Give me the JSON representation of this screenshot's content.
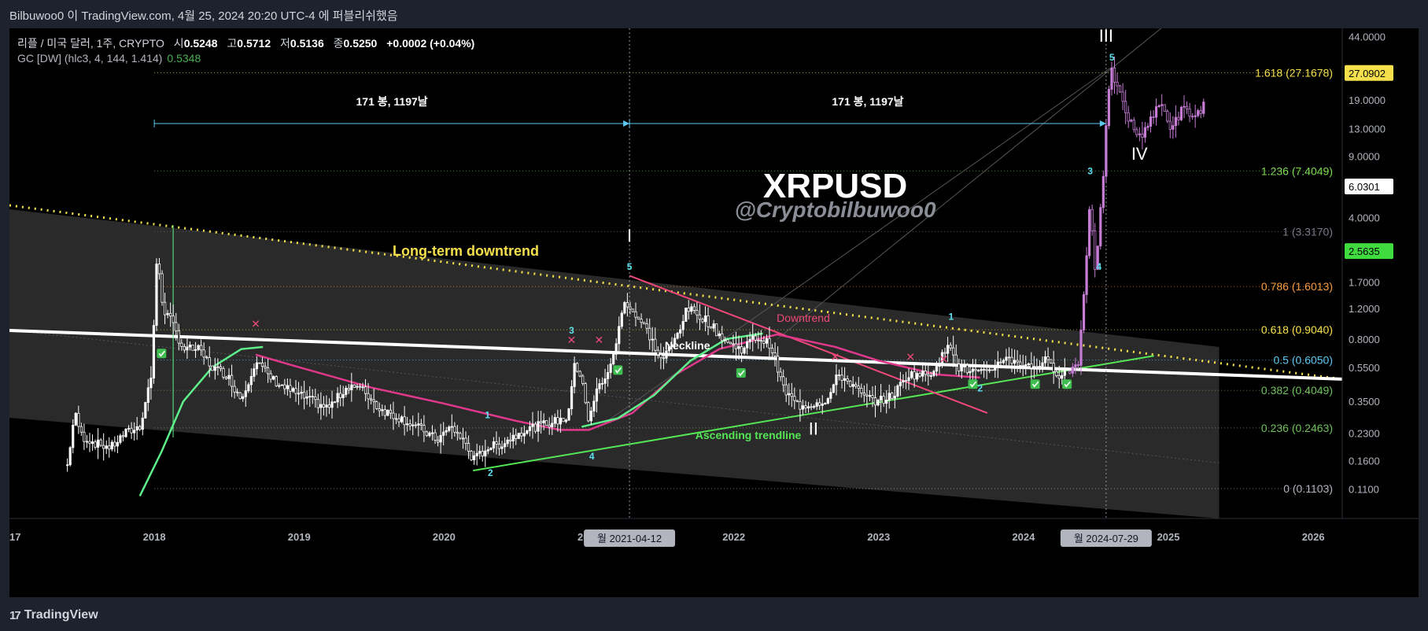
{
  "header": {
    "publish_line": "Bilbuwoo0 이 TradingView.com, 4월 25, 2024 20:20 UTC-4 에 퍼블리쉬했음"
  },
  "legend": {
    "symbol_line": "리플 / 미국 달러, 1주, CRYPTO",
    "open_label": "시",
    "open": "0.5248",
    "high_label": "고",
    "high": "0.5712",
    "low_label": "저",
    "low": "0.5136",
    "close_label": "종",
    "close": "0.5250",
    "change": "+0.0002 (+0.04%)",
    "indicator": "GC [DW] (hlc3, 4, 144, 1.414)",
    "indicator_value": "0.5348"
  },
  "footer": {
    "brand": "TradingView",
    "brand_icon": "tradingview-logo-icon"
  },
  "colors": {
    "background": "#000000",
    "candles": "#ffffff",
    "projection": "#c77dd6",
    "trendline_ascending": "#55e655",
    "trendline_downtrend": "#f0487a",
    "long_term_downtrend": "#f5e04c",
    "neckline": "#ffffff",
    "gc_curve": "#5ef08a",
    "fib_1618": "#f5e04c",
    "fib_1236": "#7ddc4f",
    "fib_1": "#787b86",
    "fib_0786": "#f59c42",
    "fib_0618": "#f5e04c",
    "fib_05": "#5ec8f0",
    "fib_0382": "#6fbf5a",
    "fib_0236": "#6fbf5a",
    "fib_0": "#b2b5be"
  },
  "chart_data": {
    "type": "candlestick",
    "title": "XRPUSD",
    "watermark": "@Cryptobilbuwoo0",
    "scale": "log",
    "ylim": [
      0.085,
      46
    ],
    "xlim": [
      2017.0,
      2026.2
    ],
    "x_ticks": [
      "2017",
      "2018",
      "2019",
      "2020",
      "2021",
      "2022",
      "2023",
      "2024",
      "2025",
      "2026"
    ],
    "y_ticks": [
      "44.0000",
      "27.0000",
      "19.0000",
      "13.0000",
      "9.0000",
      "6.0000",
      "4.0000",
      "2.5000",
      "1.7000",
      "1.2000",
      "0.8000",
      "0.5500",
      "0.3500",
      "0.2300",
      "0.1600",
      "0.1100"
    ],
    "crosshair_dates": [
      "월 2021-04-12",
      "월 2024-07-29"
    ],
    "price_badges": [
      {
        "value": "27.0902",
        "style": "yellow"
      },
      {
        "value": "6.0301",
        "style": "white"
      },
      {
        "value": "2.5635",
        "style": "green"
      }
    ],
    "fib_levels": [
      {
        "ratio": "1.618",
        "price": 27.1678,
        "label": "1.618 (27.1678)"
      },
      {
        "ratio": "1.236",
        "price": 7.4049,
        "label": "1.236 (7.4049)"
      },
      {
        "ratio": "1",
        "price": 3.317,
        "label": "1 (3.3170)"
      },
      {
        "ratio": "0.786",
        "price": 1.6013,
        "label": "0.786 (1.6013)"
      },
      {
        "ratio": "0.618",
        "price": 0.904,
        "label": "0.618 (0.9040)"
      },
      {
        "ratio": "0.5",
        "price": 0.605,
        "label": "0.5 (0.6050)"
      },
      {
        "ratio": "0.382",
        "price": 0.4049,
        "label": "0.382 (0.4049)"
      },
      {
        "ratio": "0.236",
        "price": 0.2463,
        "label": "0.236 (0.2463)"
      },
      {
        "ratio": "0",
        "price": 0.1103,
        "label": "0 (0.1103)"
      }
    ],
    "ranges": [
      {
        "label": "171 봉, 1197날",
        "from": 2018.0,
        "to": 2021.28
      },
      {
        "label": "171 봉, 1197날",
        "from": 2021.28,
        "to": 2024.57
      }
    ],
    "annotations": {
      "long_term_downtrend": "Long-term downtrend",
      "downtrend": "Downtrend",
      "neckline": "Neckline",
      "ascending_trendline": "Ascending trendline",
      "waves": [
        {
          "label": "I",
          "x": 2021.28,
          "y": 2.9
        },
        {
          "label": "II",
          "x": 2022.55,
          "y": 0.225
        },
        {
          "label": "III",
          "x": 2024.57,
          "y": 41
        },
        {
          "label": "IV",
          "x": 2024.8,
          "y": 8.6
        }
      ],
      "sub_waves": [
        {
          "label": "1",
          "x": 2020.3,
          "y": 0.28
        },
        {
          "label": "2",
          "x": 2020.32,
          "y": 0.13
        },
        {
          "label": "3",
          "x": 2020.88,
          "y": 0.86
        },
        {
          "label": "4",
          "x": 2021.02,
          "y": 0.162
        },
        {
          "label": "5",
          "x": 2021.28,
          "y": 2.0
        },
        {
          "label": "1",
          "x": 2023.5,
          "y": 1.03
        },
        {
          "label": "2",
          "x": 2023.7,
          "y": 0.4
        },
        {
          "label": "3",
          "x": 2024.46,
          "y": 7.1
        },
        {
          "label": "4",
          "x": 2024.52,
          "y": 2.0
        },
        {
          "label": "5",
          "x": 2024.61,
          "y": 32
        }
      ],
      "x_marks": [
        {
          "x": 2018.7,
          "y": 0.93
        },
        {
          "x": 2020.88,
          "y": 0.75
        },
        {
          "x": 2021.07,
          "y": 0.75
        },
        {
          "x": 2022.7,
          "y": 0.6
        },
        {
          "x": 2023.22,
          "y": 0.6
        },
        {
          "x": 2023.45,
          "y": 0.58
        }
      ],
      "check_marks": [
        {
          "x": 2018.05,
          "y": 0.66
        },
        {
          "x": 2021.2,
          "y": 0.53
        },
        {
          "x": 2022.05,
          "y": 0.51
        },
        {
          "x": 2023.65,
          "y": 0.44
        },
        {
          "x": 2024.08,
          "y": 0.44
        },
        {
          "x": 2024.3,
          "y": 0.44
        }
      ]
    },
    "price_path": [
      [
        2017.4,
        0.15
      ],
      [
        2017.45,
        0.3
      ],
      [
        2017.5,
        0.22
      ],
      [
        2017.6,
        0.2
      ],
      [
        2017.7,
        0.19
      ],
      [
        2017.8,
        0.23
      ],
      [
        2017.9,
        0.25
      ],
      [
        2017.98,
        0.5
      ],
      [
        2018.02,
        2.5
      ],
      [
        2018.06,
        1.2
      ],
      [
        2018.12,
        1.0
      ],
      [
        2018.2,
        0.7
      ],
      [
        2018.3,
        0.7
      ],
      [
        2018.4,
        0.55
      ],
      [
        2018.5,
        0.5
      ],
      [
        2018.6,
        0.36
      ],
      [
        2018.7,
        0.6
      ],
      [
        2018.8,
        0.48
      ],
      [
        2018.9,
        0.42
      ],
      [
        2019.0,
        0.38
      ],
      [
        2019.2,
        0.32
      ],
      [
        2019.35,
        0.44
      ],
      [
        2019.45,
        0.4
      ],
      [
        2019.55,
        0.32
      ],
      [
        2019.7,
        0.28
      ],
      [
        2019.85,
        0.24
      ],
      [
        2019.95,
        0.21
      ],
      [
        2020.05,
        0.25
      ],
      [
        2020.15,
        0.2
      ],
      [
        2020.2,
        0.16
      ],
      [
        2020.3,
        0.19
      ],
      [
        2020.4,
        0.2
      ],
      [
        2020.55,
        0.24
      ],
      [
        2020.7,
        0.26
      ],
      [
        2020.85,
        0.28
      ],
      [
        2020.9,
        0.55
      ],
      [
        2020.95,
        0.5
      ],
      [
        2021.0,
        0.26
      ],
      [
        2021.05,
        0.4
      ],
      [
        2021.15,
        0.55
      ],
      [
        2021.25,
        1.35
      ],
      [
        2021.32,
        1.1
      ],
      [
        2021.4,
        0.9
      ],
      [
        2021.5,
        0.6
      ],
      [
        2021.58,
        0.75
      ],
      [
        2021.68,
        1.2
      ],
      [
        2021.8,
        1.05
      ],
      [
        2021.9,
        0.85
      ],
      [
        2021.97,
        0.75
      ],
      [
        2022.05,
        0.7
      ],
      [
        2022.15,
        0.82
      ],
      [
        2022.25,
        0.75
      ],
      [
        2022.35,
        0.4
      ],
      [
        2022.45,
        0.33
      ],
      [
        2022.55,
        0.34
      ],
      [
        2022.65,
        0.36
      ],
      [
        2022.72,
        0.5
      ],
      [
        2022.8,
        0.45
      ],
      [
        2022.9,
        0.37
      ],
      [
        2023.0,
        0.35
      ],
      [
        2023.1,
        0.38
      ],
      [
        2023.2,
        0.5
      ],
      [
        2023.35,
        0.5
      ],
      [
        2023.5,
        0.75
      ],
      [
        2023.55,
        0.55
      ],
      [
        2023.65,
        0.52
      ],
      [
        2023.75,
        0.5
      ],
      [
        2023.85,
        0.62
      ],
      [
        2023.95,
        0.6
      ],
      [
        2024.05,
        0.55
      ],
      [
        2024.15,
        0.6
      ],
      [
        2024.25,
        0.5
      ],
      [
        2024.3,
        0.52
      ]
    ],
    "projection_path": [
      [
        2024.32,
        0.52
      ],
      [
        2024.38,
        0.6
      ],
      [
        2024.43,
        2.0
      ],
      [
        2024.46,
        5.5
      ],
      [
        2024.49,
        2.0
      ],
      [
        2024.52,
        3.2
      ],
      [
        2024.55,
        7.0
      ],
      [
        2024.58,
        18
      ],
      [
        2024.61,
        28
      ],
      [
        2024.65,
        22
      ],
      [
        2024.72,
        15
      ],
      [
        2024.8,
        11.5
      ],
      [
        2024.88,
        15
      ],
      [
        2024.95,
        18
      ],
      [
        2025.02,
        13
      ],
      [
        2025.1,
        17
      ],
      [
        2025.18,
        15
      ],
      [
        2025.25,
        18
      ]
    ]
  }
}
